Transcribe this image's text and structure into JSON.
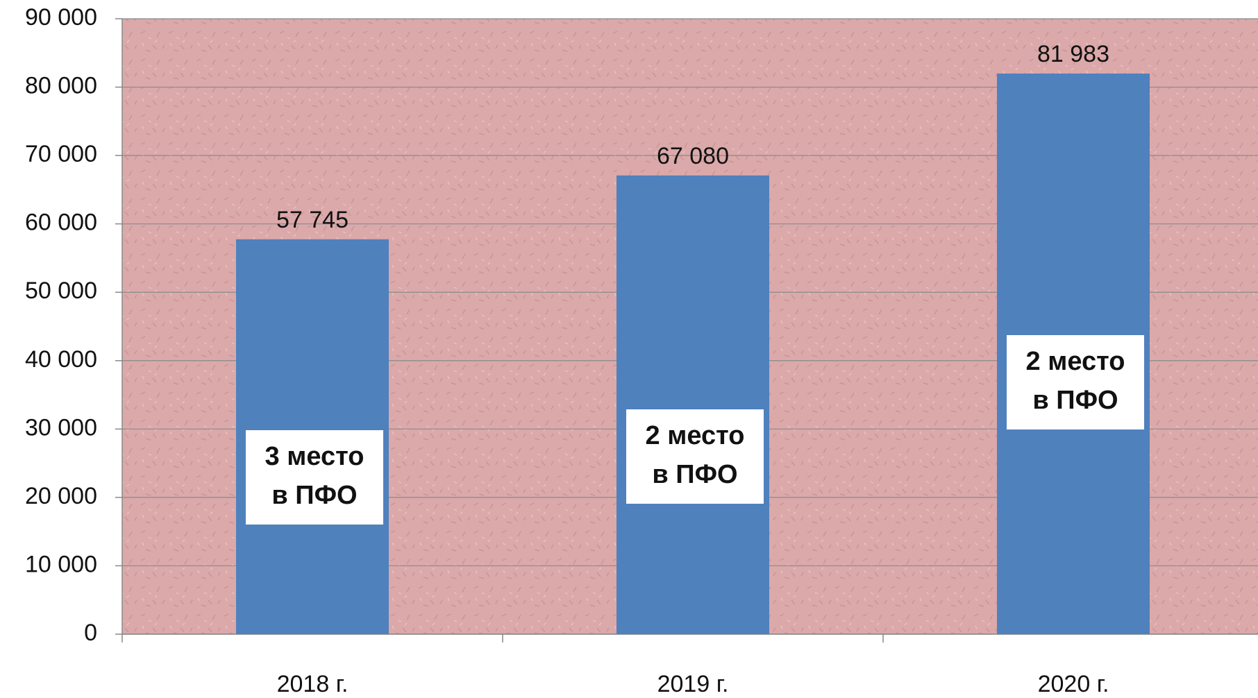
{
  "chart_data": {
    "type": "bar",
    "categories": [
      "2018 г.",
      "2019 г.",
      "2020 г."
    ],
    "values": [
      57745,
      67080,
      81983
    ],
    "value_labels": [
      "57 745",
      "67 080",
      "81 983"
    ],
    "color": "#4f81bd",
    "ylim": [
      0,
      90000
    ],
    "yticks": [
      0,
      {
        "value": 10000,
        "label": "10 000"
      },
      {
        "value": 20000,
        "label": "20 000"
      },
      {
        "value": 30000,
        "label": "30 000"
      },
      {
        "value": 40000,
        "label": "40 000"
      },
      {
        "value": 50000,
        "label": "50 000"
      },
      {
        "value": 60000,
        "label": "60 000"
      },
      {
        "value": 70000,
        "label": "70 000"
      },
      {
        "value": 80000,
        "label": "80 000"
      },
      {
        "value": 90000,
        "label": "90 000"
      }
    ],
    "grid": true,
    "annotations": [
      [
        "3 место",
        "в ПФО"
      ],
      [
        "2 место",
        "в ПФО"
      ],
      [
        "2 место",
        "в ПФО"
      ]
    ]
  }
}
